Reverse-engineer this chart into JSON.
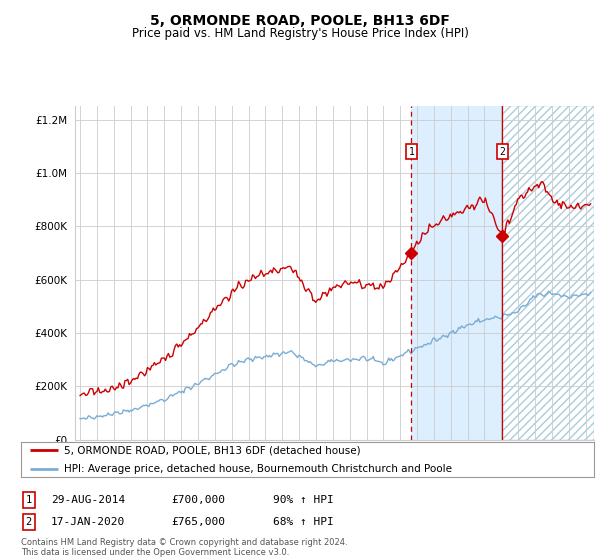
{
  "title": "5, ORMONDE ROAD, POOLE, BH13 6DF",
  "subtitle": "Price paid vs. HM Land Registry's House Price Index (HPI)",
  "legend_line1": "5, ORMONDE ROAD, POOLE, BH13 6DF (detached house)",
  "legend_line2": "HPI: Average price, detached house, Bournemouth Christchurch and Poole",
  "annotation1": [
    "1",
    "29-AUG-2014",
    "£700,000",
    "90% ↑ HPI"
  ],
  "annotation2": [
    "2",
    "17-JAN-2020",
    "£765,000",
    "68% ↑ HPI"
  ],
  "footer": "Contains HM Land Registry data © Crown copyright and database right 2024.\nThis data is licensed under the Open Government Licence v3.0.",
  "sale1_year": 2014.66,
  "sale1_price": 700000,
  "sale2_year": 2020.05,
  "sale2_price": 765000,
  "ylim": [
    0,
    1250000
  ],
  "xlim_start": 1994.7,
  "xlim_end": 2025.5,
  "red_color": "#cc0000",
  "blue_line_color": "#7aadd4",
  "shade_color": "#ddeeff",
  "background_color": "#ffffff",
  "grid_color": "#cccccc"
}
